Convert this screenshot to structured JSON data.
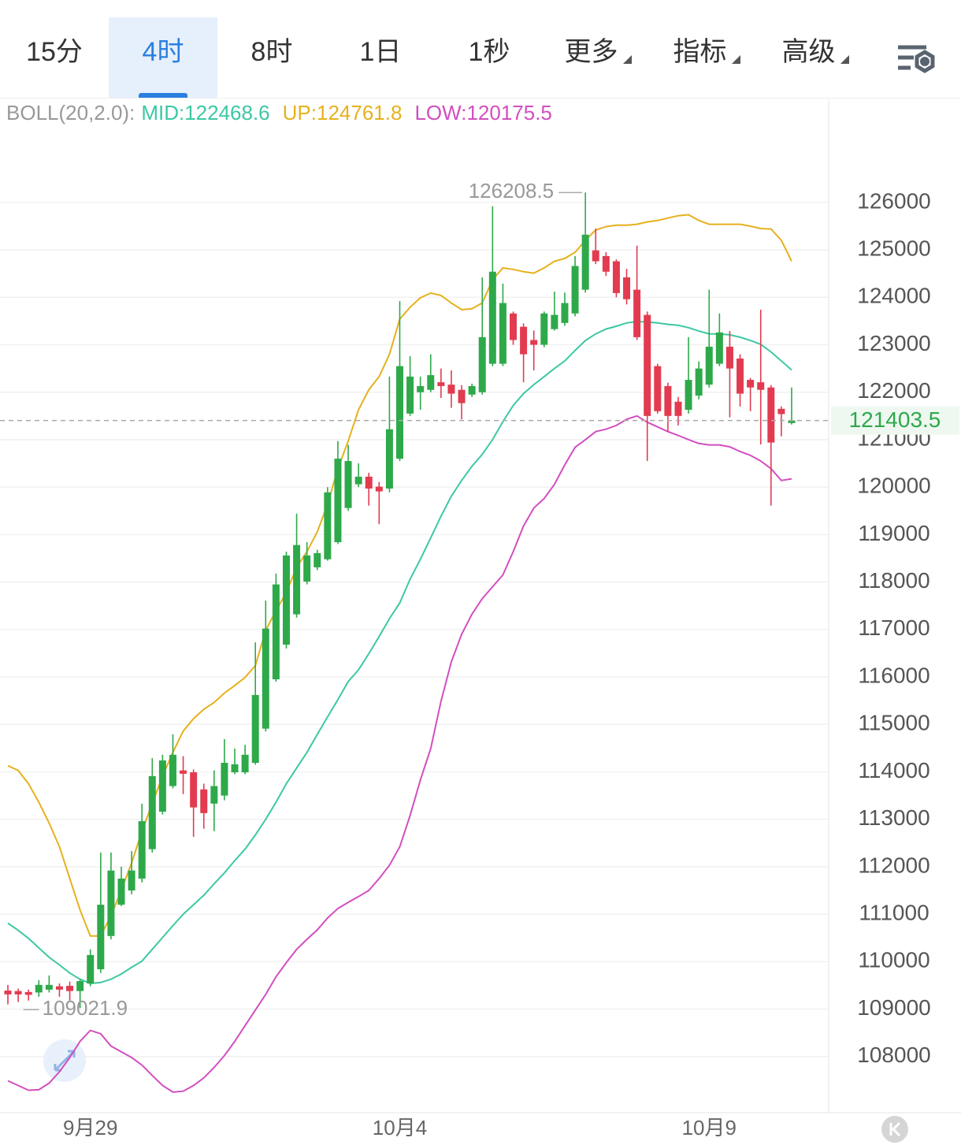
{
  "toolbar": {
    "tabs": [
      "15分",
      "4时",
      "8时",
      "1日",
      "1秒"
    ],
    "menus": [
      "更多",
      "指标",
      "高级"
    ],
    "selected_tab": 1
  },
  "chart_data": {
    "type": "candlestick",
    "indicator": "BOLL(20,2.0):",
    "categories": [
      null,
      null,
      null,
      null,
      null,
      null,
      null,
      null,
      "9月29",
      null,
      null,
      null,
      null,
      null,
      null,
      null,
      null,
      null,
      null,
      null,
      null,
      null,
      null,
      null,
      null,
      null,
      null,
      null,
      null,
      null,
      null,
      null,
      null,
      null,
      null,
      null,
      null,
      null,
      "10月4",
      null,
      null,
      null,
      null,
      null,
      null,
      null,
      null,
      null,
      null,
      null,
      null,
      null,
      null,
      null,
      null,
      null,
      null,
      null,
      null,
      null,
      null,
      null,
      null,
      null,
      null,
      null,
      null,
      null,
      "10月9",
      null,
      null,
      null,
      null,
      null,
      null,
      null,
      null
    ],
    "open": [
      109390,
      109380,
      109360,
      109350,
      109410,
      109480,
      109490,
      109380,
      109540,
      109840,
      110540,
      111200,
      111500,
      111750,
      112370,
      113160,
      113700,
      114030,
      113990,
      113630,
      113330,
      113500,
      113990,
      113990,
      114190,
      114910,
      115950,
      116680,
      117320,
      118010,
      118310,
      118480,
      118840,
      119560,
      120060,
      120220,
      120010,
      119970,
      120600,
      121550,
      122000,
      122050,
      122210,
      122160,
      122050,
      121950,
      122000,
      122600,
      122600,
      123660,
      123380,
      123100,
      123000,
      123330,
      123460,
      123660,
      124160,
      124990,
      124870,
      124760,
      124420,
      124160,
      123630,
      122550,
      122130,
      121800,
      121630,
      121930,
      122160,
      122600,
      122960,
      122710,
      122260,
      122210,
      122100,
      121650,
      121350
    ],
    "high": [
      109510,
      109430,
      109410,
      109610,
      109710,
      109540,
      109580,
      109620,
      110260,
      112300,
      112300,
      112000,
      112330,
      113330,
      114290,
      114360,
      114790,
      114330,
      114050,
      113750,
      114030,
      114690,
      114490,
      114570,
      116730,
      117610,
      118180,
      118640,
      119440,
      118840,
      118680,
      120000,
      120970,
      120890,
      120500,
      120300,
      120110,
      122330,
      123920,
      122760,
      122330,
      122800,
      122500,
      122460,
      122150,
      122180,
      124420,
      125920,
      124290,
      123700,
      123450,
      123300,
      123700,
      124120,
      124100,
      124870,
      126208.5,
      125450,
      124950,
      124800,
      124600,
      125090,
      123700,
      122600,
      122200,
      121900,
      123160,
      122650,
      124160,
      123660,
      123290,
      122800,
      122300,
      123740,
      122150,
      121700,
      122100
    ],
    "low": [
      109100,
      109150,
      109180,
      109260,
      109350,
      109260,
      109180,
      109021.9,
      109480,
      109760,
      110470,
      111170,
      111420,
      111670,
      112300,
      113100,
      113650,
      113530,
      112630,
      112800,
      112750,
      113400,
      113950,
      113950,
      114150,
      114850,
      115900,
      116600,
      117250,
      117950,
      118250,
      118450,
      118800,
      119500,
      120000,
      119610,
      119220,
      119890,
      120550,
      121500,
      121630,
      122000,
      121880,
      121670,
      121430,
      121900,
      121950,
      122550,
      122550,
      123000,
      122210,
      122460,
      122950,
      123300,
      123400,
      123600,
      124100,
      124700,
      124450,
      124000,
      123850,
      123100,
      120550,
      121550,
      121170,
      121300,
      121550,
      121850,
      122100,
      122550,
      121470,
      121700,
      121600,
      120900,
      119610,
      121070,
      121320
    ],
    "close": [
      109310,
      109310,
      109300,
      109510,
      109510,
      109410,
      109380,
      109590,
      110140,
      111200,
      111920,
      111750,
      111920,
      112960,
      113910,
      114240,
      114360,
      113960,
      113250,
      113130,
      113700,
      114190,
      114160,
      114360,
      115620,
      117020,
      117950,
      118560,
      118780,
      118560,
      118610,
      119890,
      120600,
      120550,
      120220,
      119970,
      119910,
      121220,
      122550,
      122330,
      122130,
      122360,
      122130,
      121970,
      121770,
      122130,
      123160,
      124540,
      123880,
      123100,
      122800,
      123000,
      123660,
      123630,
      123880,
      124660,
      125320,
      124760,
      124540,
      124090,
      123960,
      123160,
      121500,
      121600,
      121500,
      121500,
      122260,
      122500,
      122960,
      123260,
      122500,
      121970,
      122100,
      122050,
      120940,
      121540,
      121403.5
    ],
    "up_color": "#2ea94a",
    "down_color": "#e23b50",
    "series": [
      {
        "name": "MID:",
        "color": "#3cc8a4",
        "values": [
          110810,
          110660,
          110490,
          110290,
          110090,
          109930,
          109760,
          109630,
          109540,
          109560,
          109630,
          109740,
          109880,
          110010,
          110260,
          110510,
          110760,
          111000,
          111200,
          111400,
          111640,
          111870,
          112130,
          112370,
          112670,
          113000,
          113360,
          113750,
          114080,
          114410,
          114790,
          115160,
          115520,
          115900,
          116150,
          116490,
          116850,
          117230,
          117560,
          118060,
          118480,
          118930,
          119390,
          119810,
          120140,
          120440,
          120690,
          121000,
          121380,
          121720,
          121970,
          122160,
          122330,
          122500,
          122660,
          122880,
          123090,
          123230,
          123330,
          123390,
          123460,
          123490,
          123480,
          123460,
          123430,
          123410,
          123360,
          123290,
          123230,
          123230,
          123210,
          123160,
          123090,
          123010,
          122850,
          122660,
          122468.6
        ]
      },
      {
        "name": "UP:",
        "color": "#e6b11c",
        "values": [
          114130,
          114030,
          113750,
          113360,
          112920,
          112420,
          111750,
          111090,
          110540,
          110540,
          110970,
          111500,
          112080,
          112750,
          113330,
          113910,
          114410,
          114860,
          115120,
          115320,
          115460,
          115660,
          115820,
          115990,
          116240,
          116980,
          117400,
          117780,
          118310,
          118640,
          119060,
          119640,
          120390,
          120970,
          121630,
          122050,
          122330,
          122800,
          123540,
          123790,
          123990,
          124090,
          124040,
          123880,
          123740,
          123760,
          123880,
          124370,
          124620,
          124590,
          124540,
          124510,
          124620,
          124760,
          124820,
          124950,
          125200,
          125420,
          125490,
          125520,
          125520,
          125540,
          125590,
          125620,
          125670,
          125720,
          125740,
          125620,
          125540,
          125540,
          125540,
          125540,
          125500,
          125450,
          125440,
          125200,
          124761.8
        ]
      },
      {
        "name": "LOW:",
        "color": "#d24ec0",
        "values": [
          107490,
          107390,
          107290,
          107300,
          107440,
          107680,
          107980,
          108320,
          108550,
          108480,
          108220,
          108100,
          107980,
          107820,
          107600,
          107390,
          107250,
          107270,
          107390,
          107550,
          107770,
          108020,
          108320,
          108650,
          108980,
          109310,
          109680,
          109980,
          110260,
          110470,
          110670,
          110920,
          111120,
          111250,
          111370,
          111500,
          111750,
          112030,
          112420,
          113080,
          113830,
          114490,
          115490,
          116320,
          116900,
          117320,
          117650,
          117900,
          118150,
          118640,
          119180,
          119560,
          119760,
          120060,
          120470,
          120840,
          121000,
          121170,
          121220,
          121300,
          121430,
          121500,
          121370,
          121270,
          121170,
          121090,
          121000,
          120920,
          120890,
          120890,
          120850,
          120750,
          120670,
          120550,
          120390,
          120140,
          120175.5
        ]
      }
    ],
    "ylim": [
      106850,
      128190
    ],
    "yticks": [
      108000,
      109000,
      110000,
      111000,
      112000,
      113000,
      114000,
      115000,
      116000,
      117000,
      118000,
      119000,
      120000,
      121000,
      122000,
      123000,
      124000,
      125000,
      126000
    ],
    "grid": true
  }
}
